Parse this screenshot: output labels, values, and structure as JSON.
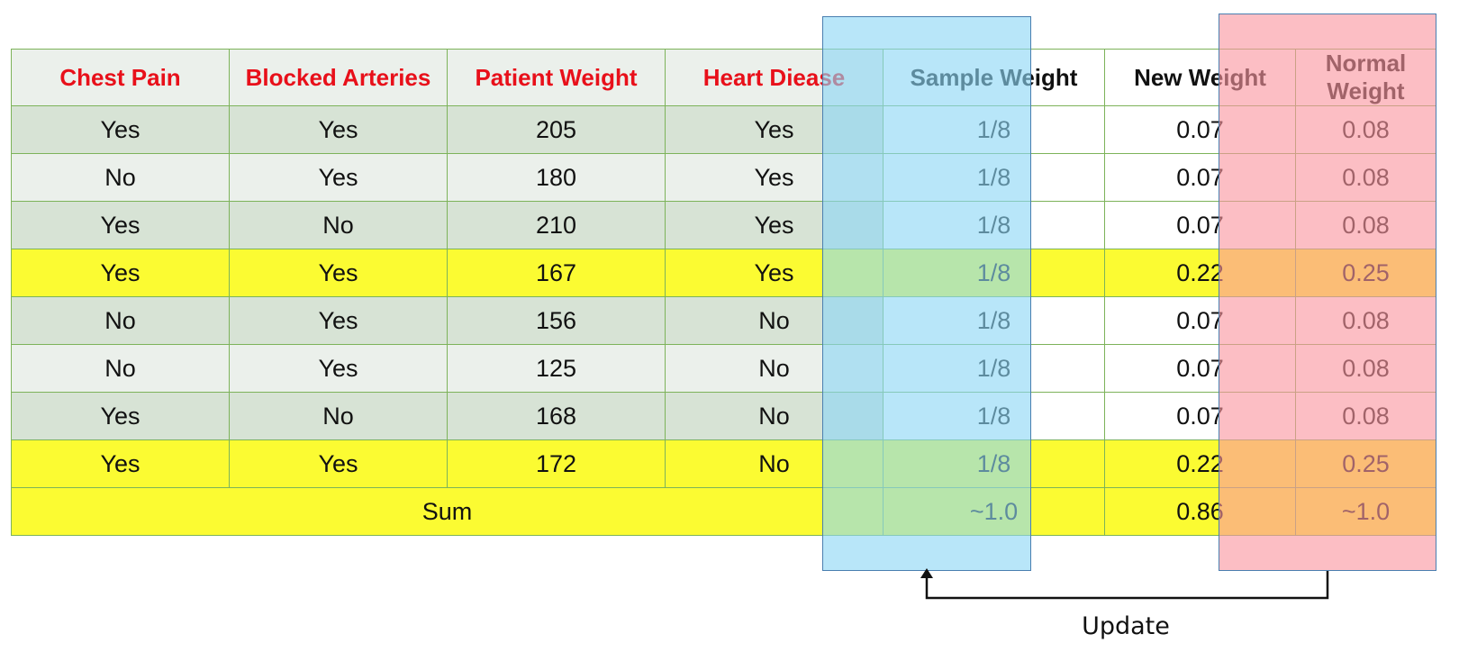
{
  "table": {
    "headers": [
      "Chest  Pain",
      "Blocked Arteries",
      "Patient Weight",
      "Heart Diease",
      "Sample Weight",
      "New Weight",
      "Normal Weight"
    ],
    "rows": [
      {
        "cells": [
          "Yes",
          "Yes",
          "205",
          "Yes",
          "1/8",
          "0.07",
          "0.08"
        ],
        "highlight": false
      },
      {
        "cells": [
          "No",
          "Yes",
          "180",
          "Yes",
          "1/8",
          "0.07",
          "0.08"
        ],
        "highlight": false
      },
      {
        "cells": [
          "Yes",
          "No",
          "210",
          "Yes",
          "1/8",
          "0.07",
          "0.08"
        ],
        "highlight": false
      },
      {
        "cells": [
          "Yes",
          "Yes",
          "167",
          "Yes",
          "1/8",
          "0.22",
          "0.25"
        ],
        "highlight": true
      },
      {
        "cells": [
          "No",
          "Yes",
          "156",
          "No",
          "1/8",
          "0.07",
          "0.08"
        ],
        "highlight": false
      },
      {
        "cells": [
          "No",
          "Yes",
          "125",
          "No",
          "1/8",
          "0.07",
          "0.08"
        ],
        "highlight": false
      },
      {
        "cells": [
          "Yes",
          "No",
          "168",
          "No",
          "1/8",
          "0.07",
          "0.08"
        ],
        "highlight": false
      },
      {
        "cells": [
          "Yes",
          "Yes",
          "172",
          "No",
          "1/8",
          "0.22",
          "0.25"
        ],
        "highlight": true
      }
    ],
    "sum_row": {
      "label": "Sum",
      "sample_weight": "~1.0",
      "new_weight": "0.86",
      "normal_weight": "~1.0"
    }
  },
  "annotation": {
    "update_label": "Update"
  },
  "colors": {
    "header_text": "#e8101a",
    "highlight_row": "#fbfb32",
    "sample_weight_band": "#8cd7f5",
    "normal_weight_band": "#fa96a0",
    "grid": "#7db35a"
  }
}
